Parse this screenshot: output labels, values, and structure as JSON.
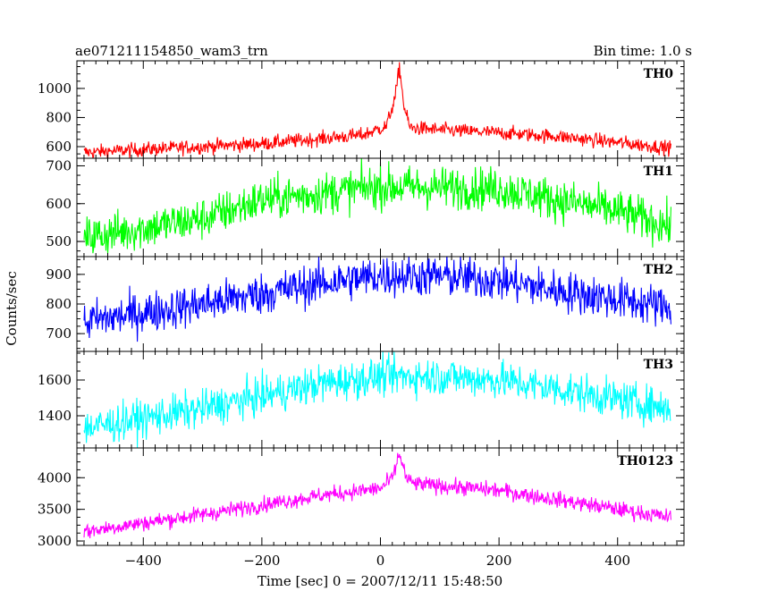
{
  "header": {
    "title": "ae071211154850_wam3_trn",
    "bin_time": "Bin time: 1.0 s"
  },
  "chart_data": {
    "type": "line",
    "xlabel": "Time [sec] 0 = 2007/12/11 15:48:50",
    "ylabel": "Counts/sec",
    "xlim": [
      -512,
      512
    ],
    "x_ticks": [
      -400,
      -200,
      0,
      200,
      400
    ],
    "x_tick_labels": [
      "−400",
      "−200",
      "0",
      "200",
      "400"
    ],
    "panels": [
      {
        "name": "TH0",
        "color": "#ff0000",
        "ylim": [
          520,
          1190
        ],
        "y_ticks": [
          600,
          800,
          1000
        ],
        "y_tick_labels": [
          "600",
          "800",
          "1000"
        ],
        "profile": [
          [
            -500,
            560
          ],
          [
            -200,
            620
          ],
          [
            -30,
            680
          ],
          [
            10,
            740
          ],
          [
            25,
            940
          ],
          [
            32,
            1150
          ],
          [
            40,
            870
          ],
          [
            50,
            730
          ],
          [
            100,
            715
          ],
          [
            200,
            695
          ],
          [
            300,
            670
          ],
          [
            490,
            590
          ]
        ],
        "noise": 35
      },
      {
        "name": "TH1",
        "color": "#00ff00",
        "ylim": [
          460,
          720
        ],
        "y_ticks": [
          500,
          600,
          700
        ],
        "y_tick_labels": [
          "500",
          "600",
          "700"
        ],
        "profile": [
          [
            -500,
            510
          ],
          [
            -300,
            560
          ],
          [
            -200,
            610
          ],
          [
            0,
            645
          ],
          [
            200,
            640
          ],
          [
            300,
            610
          ],
          [
            400,
            580
          ],
          [
            490,
            540
          ]
        ],
        "noise": 40
      },
      {
        "name": "TH2",
        "color": "#0000ff",
        "ylim": [
          640,
          960
        ],
        "y_ticks": [
          700,
          800,
          900
        ],
        "y_tick_labels": [
          "700",
          "800",
          "900"
        ],
        "profile": [
          [
            -500,
            740
          ],
          [
            -300,
            800
          ],
          [
            -100,
            870
          ],
          [
            0,
            895
          ],
          [
            100,
            895
          ],
          [
            200,
            880
          ],
          [
            300,
            845
          ],
          [
            490,
            790
          ]
        ],
        "noise": 50
      },
      {
        "name": "TH3",
        "color": "#00ffff",
        "ylim": [
          1220,
          1760
        ],
        "y_ticks": [
          1400,
          1600
        ],
        "y_tick_labels": [
          "1400",
          "1600"
        ],
        "profile": [
          [
            -500,
            1330
          ],
          [
            -300,
            1440
          ],
          [
            -100,
            1580
          ],
          [
            0,
            1620
          ],
          [
            100,
            1620
          ],
          [
            200,
            1600
          ],
          [
            300,
            1550
          ],
          [
            490,
            1440
          ]
        ],
        "noise": 75
      },
      {
        "name": "TH0123",
        "color": "#ff00ff",
        "ylim": [
          2930,
          4470
        ],
        "y_ticks": [
          3000,
          3500,
          4000
        ],
        "y_tick_labels": [
          "3000",
          "3500",
          "4000"
        ],
        "profile": [
          [
            -500,
            3150
          ],
          [
            -300,
            3420
          ],
          [
            -100,
            3720
          ],
          [
            0,
            3830
          ],
          [
            20,
            3980
          ],
          [
            32,
            4380
          ],
          [
            45,
            3960
          ],
          [
            60,
            3900
          ],
          [
            200,
            3800
          ],
          [
            300,
            3650
          ],
          [
            490,
            3370
          ]
        ],
        "noise": 90
      }
    ]
  }
}
